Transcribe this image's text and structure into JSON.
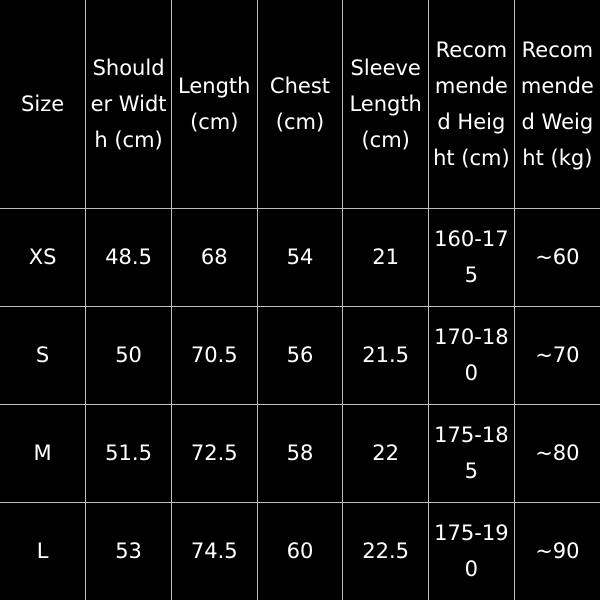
{
  "table": {
    "headers": [
      "Size",
      "Shoulder Width (cm)",
      "Length (cm)",
      "Chest (cm)",
      "Sleeve Length (cm)",
      "Recommended Height (cm)",
      "Recommended Weight (kg)"
    ],
    "rows": [
      [
        "XS",
        "48.5",
        "68",
        "54",
        "21",
        "160-175",
        "~60"
      ],
      [
        "S",
        "50",
        "70.5",
        "56",
        "21.5",
        "170-180",
        "~70"
      ],
      [
        "M",
        "51.5",
        "72.5",
        "58",
        "22",
        "175-185",
        "~80"
      ],
      [
        "L",
        "53",
        "74.5",
        "60",
        "22.5",
        "175-190",
        "~90"
      ]
    ]
  },
  "colors": {
    "background": "#000000",
    "text": "#ffffff",
    "grid": "#bdbdbd"
  }
}
